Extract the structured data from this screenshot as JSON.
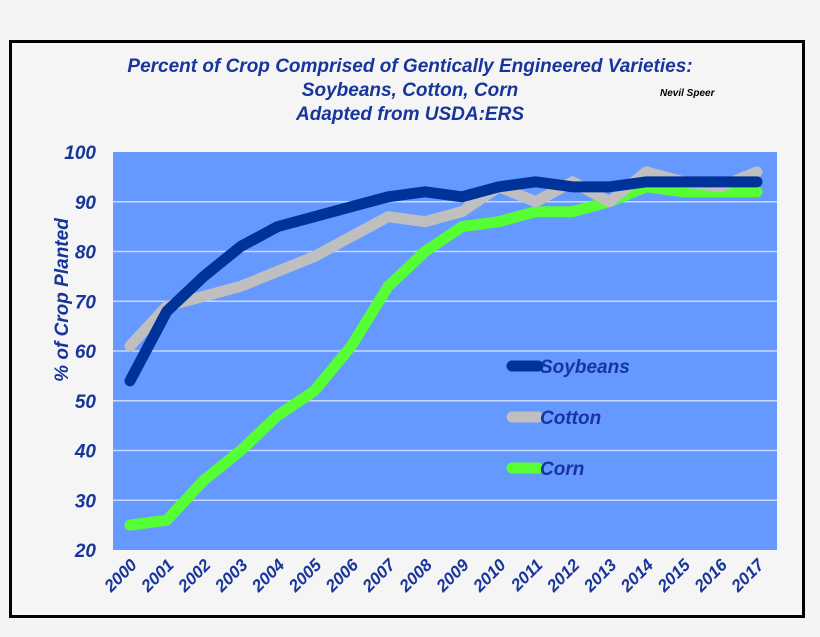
{
  "chart_data": {
    "type": "line",
    "title": "Percent of Crop Comprised of Gentically Engineered Varieties:",
    "subtitle": "Soybeans, Cotton, Corn",
    "subtitle2": "Adapted from USDA:ERS",
    "author": "Nevil Speer",
    "xlabel": "",
    "ylabel": "% of Crop Planted",
    "ylim": [
      20,
      100
    ],
    "yticks": [
      20,
      30,
      40,
      50,
      60,
      70,
      80,
      90,
      100
    ],
    "grid": true,
    "legend": "right-center",
    "background": "#6699ff",
    "categories": [
      "2000",
      "2001",
      "2002",
      "2003",
      "2004",
      "2005",
      "2006",
      "2007",
      "2008",
      "2009",
      "2010",
      "2011",
      "2012",
      "2013",
      "2014",
      "2015",
      "2016",
      "2017"
    ],
    "series": [
      {
        "name": "Soybeans",
        "color": "#003399",
        "values": [
          54,
          68,
          75,
          81,
          85,
          87,
          89,
          91,
          92,
          91,
          93,
          94,
          93,
          93,
          94,
          94,
          94,
          94
        ]
      },
      {
        "name": "Cotton",
        "color": "#bfbfbf",
        "values": [
          61,
          69,
          71,
          73,
          76,
          79,
          83,
          87,
          86,
          88,
          93,
          90,
          94,
          90,
          96,
          94,
          93,
          96
        ]
      },
      {
        "name": "Corn",
        "color": "#55ff33",
        "values": [
          25,
          26,
          34,
          40,
          47,
          52,
          61,
          73,
          80,
          85,
          86,
          88,
          88,
          90,
          93,
          92,
          92,
          92
        ]
      }
    ]
  }
}
